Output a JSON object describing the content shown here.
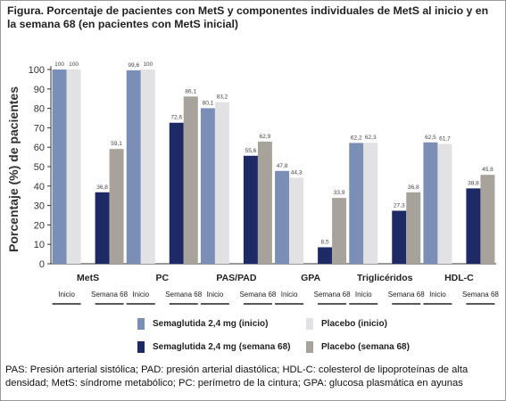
{
  "title": "Figura. Porcentaje de pacientes con MetS y componentes individuales de MetS al inicio y en la semana 68 (en pacientes con MetS inicial)",
  "footnote": "PAS: Presión arterial sistólica; PAD: presión arterial diastólica; HDL-C: colesterol de lipoproteínas de alta densidad; MetS: síndrome metabólico; PC: perímetro de la cintura; GPA: glucosa plasmática en ayunas",
  "legend": [
    {
      "label": "Semaglutida 2,4 mg (inicio)",
      "color": "#7b8fb6"
    },
    {
      "label": "Placebo (inicio)",
      "color": "#e2e2e4"
    },
    {
      "label": "Semaglutida 2,4 mg (semana 68)",
      "color": "#1e2a66"
    },
    {
      "label": "Placebo (semana 68)",
      "color": "#a8a39a"
    }
  ],
  "chart_data": {
    "type": "bar",
    "ylabel": "Porcentaje (%) de pacientes",
    "ylim": [
      0,
      100
    ],
    "yticks": [
      0,
      10,
      20,
      30,
      40,
      50,
      60,
      70,
      80,
      90,
      100
    ],
    "categories": [
      "MetS",
      "PC",
      "PAS/PAD",
      "GPA",
      "Triglicéridos",
      "HDL-C"
    ],
    "group_sublabels": [
      "Inicio",
      "Semana 68"
    ],
    "series": [
      {
        "name": "Semaglutida 2,4 mg (inicio)",
        "color": "#7b8fb6",
        "values": [
          100,
          99.6,
          80.1,
          47.8,
          62.2,
          62.5
        ],
        "labels": [
          "100",
          "99,6",
          "80,1",
          "47,8",
          "62,2",
          "62,5"
        ]
      },
      {
        "name": "Placebo (inicio)",
        "color": "#e2e2e4",
        "values": [
          100,
          100,
          83.2,
          44.3,
          62.3,
          61.7
        ],
        "labels": [
          "100",
          "100",
          "83,2",
          "44,3",
          "62,3",
          "61,7"
        ]
      },
      {
        "name": "Semaglutida 2,4 mg (semana 68)",
        "color": "#1e2a66",
        "values": [
          36.8,
          72.6,
          55.6,
          8.5,
          27.3,
          38.8
        ],
        "labels": [
          "36,8",
          "72,6",
          "55,6",
          "8,5",
          "27,3",
          "38,8"
        ]
      },
      {
        "name": "Placebo (semana 68)",
        "color": "#a8a39a",
        "values": [
          59.1,
          86.1,
          62.9,
          33.9,
          36.8,
          45.8
        ],
        "labels": [
          "59,1",
          "86,1",
          "62,9",
          "33,9",
          "36,8",
          "45,8"
        ]
      }
    ]
  }
}
